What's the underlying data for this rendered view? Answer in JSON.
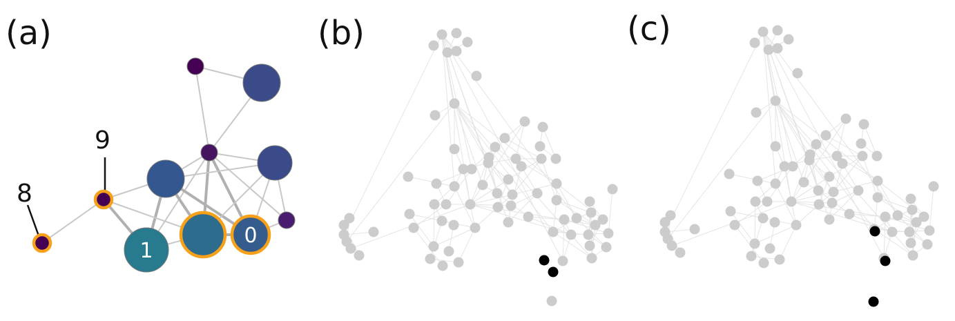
{
  "panels": [
    {
      "label": "(a)",
      "nodes": [
        {
          "id": "top-small",
          "color": "#440154",
          "size": "small"
        },
        {
          "id": "top-big",
          "color": "#3b4b8a",
          "size": "large"
        },
        {
          "id": "hub",
          "color": "#46135e",
          "size": "small"
        },
        {
          "id": "right-mid",
          "color": "#3b4b8a",
          "size": "medium"
        },
        {
          "id": "center",
          "color": "#35578f",
          "size": "large"
        },
        {
          "id": "right-small",
          "color": "#481c6e",
          "size": "small"
        },
        {
          "id": "n9",
          "color": "#440154",
          "size": "small",
          "highlight": true,
          "callout": "9"
        },
        {
          "id": "n8",
          "color": "#440154",
          "size": "small",
          "highlight": true,
          "callout": "8"
        },
        {
          "id": "n1",
          "color": "#287b8e",
          "size": "xlarge",
          "text": "1"
        },
        {
          "id": "n-mid",
          "color": "#2e6c8e",
          "size": "xlarge",
          "highlight": true
        },
        {
          "id": "n0",
          "color": "#345d8e",
          "size": "large",
          "highlight": true,
          "text": "0"
        }
      ],
      "edges": [
        [
          "top-small",
          "top-big"
        ],
        [
          "top-small",
          "hub"
        ],
        [
          "top-big",
          "hub"
        ],
        [
          "hub",
          "right-mid"
        ],
        [
          "hub",
          "center"
        ],
        [
          "hub",
          "n1"
        ],
        [
          "hub",
          "n-mid"
        ],
        [
          "hub",
          "n0"
        ],
        [
          "hub",
          "right-small"
        ],
        [
          "center",
          "n9"
        ],
        [
          "center",
          "n1"
        ],
        [
          "center",
          "n-mid"
        ],
        [
          "center",
          "n0"
        ],
        [
          "center",
          "right-mid"
        ],
        [
          "right-mid",
          "n-mid"
        ],
        [
          "right-mid",
          "n0"
        ],
        [
          "right-mid",
          "right-small"
        ],
        [
          "n9",
          "n8"
        ],
        [
          "n9",
          "n1"
        ],
        [
          "n9",
          "n-mid"
        ],
        [
          "n1",
          "n-mid"
        ],
        [
          "n-mid",
          "n0"
        ],
        [
          "n0",
          "right-small"
        ]
      ],
      "colors": {
        "highlight_ring": "#f7a11a",
        "edge": "#c8c8c8",
        "edge_strong": "#b0b0b0"
      }
    },
    {
      "label": "(b)",
      "colors": {
        "node": "#cccccc",
        "selected": "#000000",
        "edge": "#e4e4e4"
      },
      "selected_count": 2
    },
    {
      "label": "(c)",
      "colors": {
        "node": "#cccccc",
        "selected": "#000000",
        "edge": "#e4e4e4"
      },
      "selected_count": 3
    }
  ]
}
